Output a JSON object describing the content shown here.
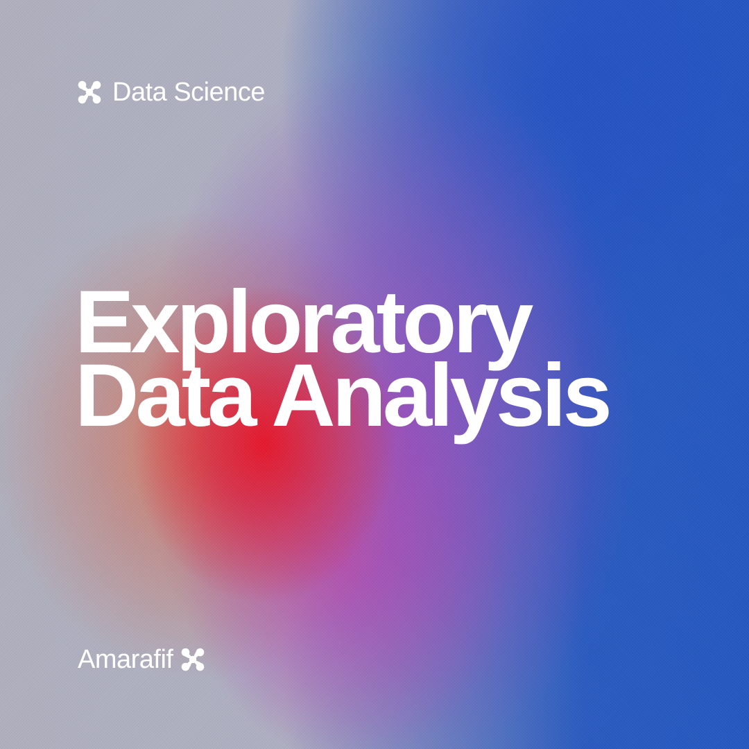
{
  "category": {
    "label": "Data Science",
    "icon": "clover-icon"
  },
  "headline": {
    "line1": "Exploratory",
    "line2": "Data Analysis"
  },
  "brand": {
    "name": "Amarafif",
    "icon": "clover-icon"
  },
  "colors": {
    "text": "#ffffff",
    "blue": "#2558bf",
    "red": "#e81428",
    "purple": "#9646be",
    "grey": "#aeb0c2"
  }
}
